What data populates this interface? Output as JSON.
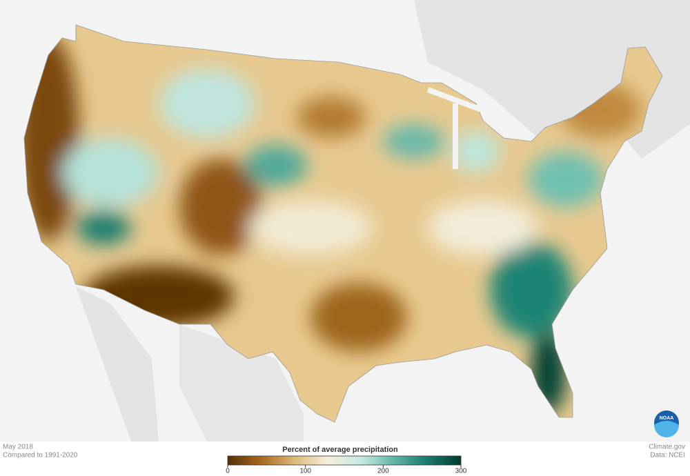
{
  "caption": {
    "period": "May 2018",
    "baseline": "Compared to 1991-2020"
  },
  "credits": {
    "site": "Climate.gov",
    "source": "Data: NCEI",
    "logo": "NOAA"
  },
  "legend": {
    "title": "Percent of average precipitation",
    "range": [
      0,
      300
    ],
    "ticks": [
      0,
      100,
      200,
      300
    ],
    "colors": [
      "#543005",
      "#a8671e",
      "#dcb978",
      "#f6efdc",
      "#c7eae4",
      "#5fb5a6",
      "#1a7a6c",
      "#003c30"
    ]
  }
}
